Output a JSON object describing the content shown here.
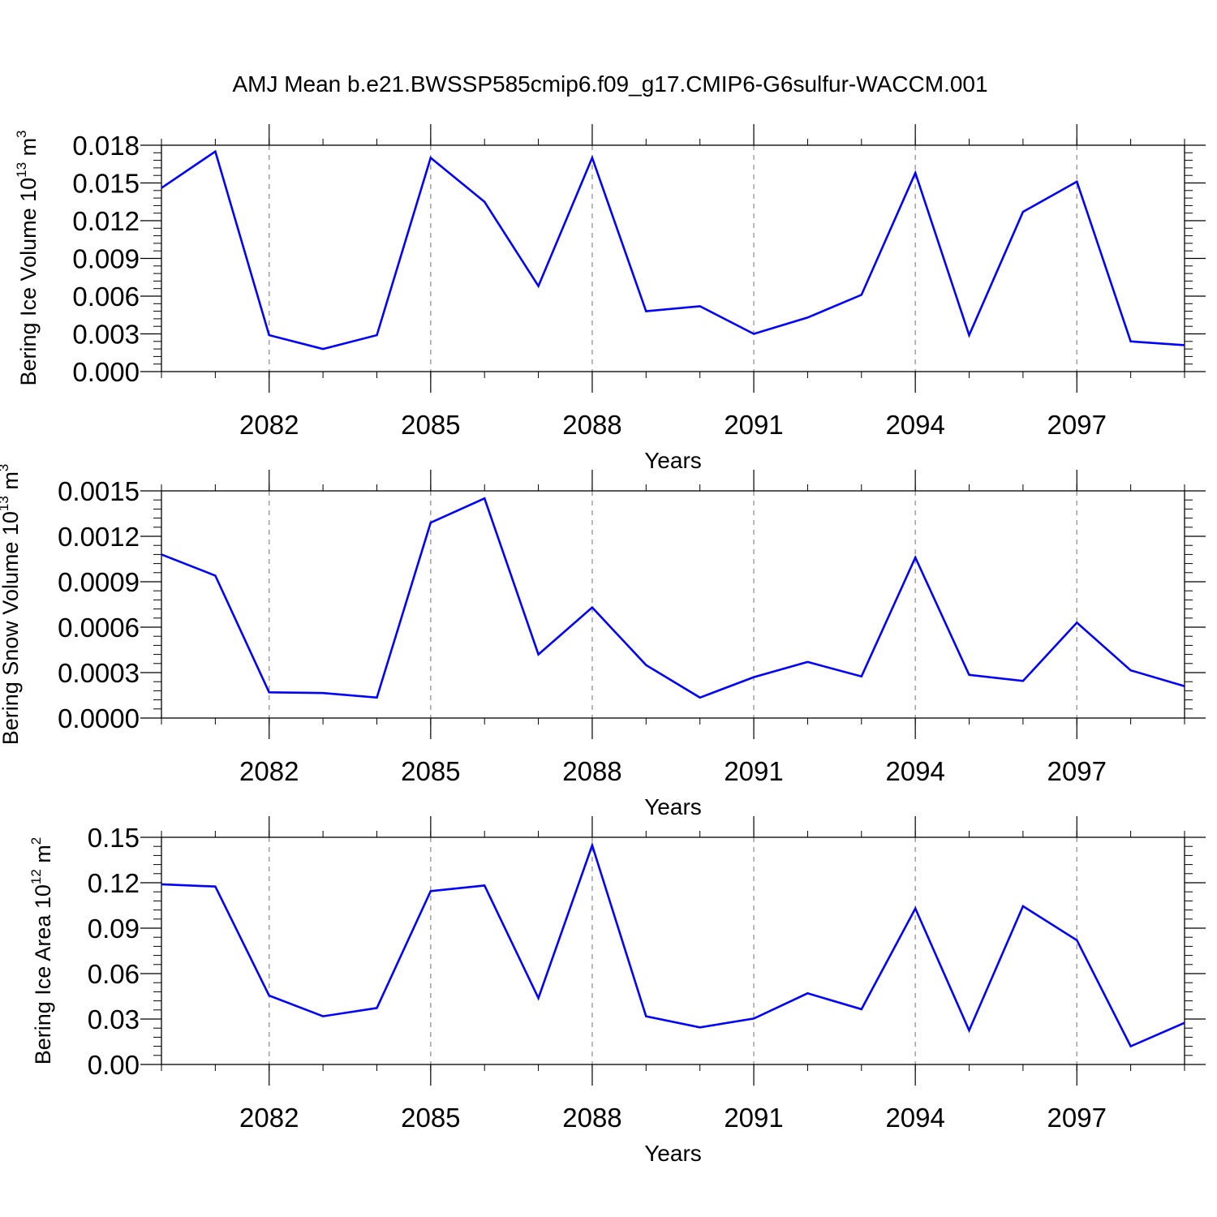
{
  "title": "AMJ Mean b.e21.BWSSP585cmip6.f09_g17.CMIP6-G6sulfur-WACCM.001",
  "chart_data": [
    {
      "type": "line",
      "title": "AMJ Mean b.e21.BWSSP585cmip6.f09_g17.CMIP6-G6sulfur-WACCM.001",
      "xlabel": "Years",
      "ylabel": {
        "text": "Bering Ice Volume 10",
        "sup1": "13",
        "mid": " m",
        "sup2": "3"
      },
      "xlim": [
        2080,
        2099
      ],
      "ylim": [
        0,
        0.018
      ],
      "x_ticks": [
        2082,
        2085,
        2088,
        2091,
        2094,
        2097
      ],
      "x_tick_labels": [
        "2082",
        "2085",
        "2088",
        "2091",
        "2094",
        "2097"
      ],
      "y_ticks": [
        0,
        0.003,
        0.006,
        0.009,
        0.012,
        0.015,
        0.018
      ],
      "y_tick_labels": [
        "0.000",
        "0.003",
        "0.006",
        "0.009",
        "0.012",
        "0.015",
        "0.018"
      ],
      "x": [
        2080,
        2081,
        2082,
        2083,
        2084,
        2085,
        2086,
        2087,
        2088,
        2089,
        2090,
        2091,
        2092,
        2093,
        2094,
        2095,
        2096,
        2097,
        2098,
        2099
      ],
      "series": [
        {
          "color": "#0000ff",
          "values": [
            0.0146,
            0.0175,
            0.0029,
            0.0018,
            0.0029,
            0.017,
            0.0135,
            0.0068,
            0.017,
            0.0048,
            0.0052,
            0.003,
            0.0043,
            0.0061,
            0.0158,
            0.0029,
            0.0127,
            0.0151,
            0.0024,
            0.0021
          ]
        }
      ],
      "grid": "vertical dashed at major x ticks"
    },
    {
      "type": "line",
      "xlabel": "Years",
      "ylabel": {
        "text": "Bering Snow Volume 10",
        "sup1": "13",
        "mid": " m",
        "sup2": "3"
      },
      "xlim": [
        2080,
        2099
      ],
      "ylim": [
        0,
        0.0015
      ],
      "x_ticks": [
        2082,
        2085,
        2088,
        2091,
        2094,
        2097
      ],
      "x_tick_labels": [
        "2082",
        "2085",
        "2088",
        "2091",
        "2094",
        "2097"
      ],
      "y_ticks": [
        0,
        0.0003,
        0.0006,
        0.0009,
        0.0012,
        0.0015
      ],
      "y_tick_labels": [
        "0.0000",
        "0.0003",
        "0.0006",
        "0.0009",
        "0.0012",
        "0.0015"
      ],
      "x": [
        2080,
        2081,
        2082,
        2083,
        2084,
        2085,
        2086,
        2087,
        2088,
        2089,
        2090,
        2091,
        2092,
        2093,
        2094,
        2095,
        2096,
        2097,
        2098,
        2099
      ],
      "series": [
        {
          "color": "#0000ff",
          "values": [
            0.00108,
            0.00094,
            0.00017,
            0.000165,
            0.000135,
            0.00129,
            0.00145,
            0.00042,
            0.00073,
            0.00035,
            0.000135,
            0.00027,
            0.00037,
            0.000275,
            0.00106,
            0.000285,
            0.000245,
            0.00063,
            0.000315,
            0.00021
          ]
        }
      ],
      "grid": "vertical dashed at major x ticks"
    },
    {
      "type": "line",
      "xlabel": "Years",
      "ylabel": {
        "text": "Bering Ice Area 10",
        "sup1": "12",
        "mid": " m",
        "sup2": "2"
      },
      "xlim": [
        2080,
        2099
      ],
      "ylim": [
        0,
        0.15
      ],
      "x_ticks": [
        2082,
        2085,
        2088,
        2091,
        2094,
        2097
      ],
      "x_tick_labels": [
        "2082",
        "2085",
        "2088",
        "2091",
        "2094",
        "2097"
      ],
      "y_ticks": [
        0,
        0.03,
        0.06,
        0.09,
        0.12,
        0.15
      ],
      "y_tick_labels": [
        "0.00",
        "0.03",
        "0.06",
        "0.09",
        "0.12",
        "0.15"
      ],
      "x": [
        2080,
        2081,
        2082,
        2083,
        2084,
        2085,
        2086,
        2087,
        2088,
        2089,
        2090,
        2091,
        2092,
        2093,
        2094,
        2095,
        2096,
        2097,
        2098,
        2099
      ],
      "series": [
        {
          "color": "#0000ff",
          "values": [
            0.119,
            0.1175,
            0.0455,
            0.0318,
            0.0373,
            0.1145,
            0.1182,
            0.0438,
            0.1447,
            0.0318,
            0.0245,
            0.0303,
            0.047,
            0.0365,
            0.103,
            0.0225,
            0.1045,
            0.082,
            0.012,
            0.0275
          ]
        }
      ],
      "grid": "vertical dashed at major x ticks"
    }
  ]
}
